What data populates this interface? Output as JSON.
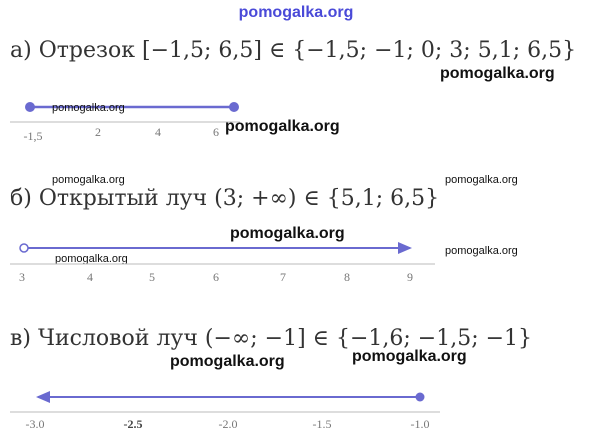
{
  "watermarks": [
    "pomogalka.org",
    "pomogalka.org",
    "pomogalka.org",
    "pomogalka.org",
    "pomogalka.org",
    "pomogalka.org",
    "pomogalka.org",
    "pomogalka.org",
    "pomogalka.org",
    "pomogalka.org",
    "pomogalka.org"
  ],
  "sections": [
    {
      "heading": "а) Отрезок [−1,5; 6,5]  ∈ {−1,5;  −1; 0; 3; 5,1; 6,5}",
      "ticks": [
        "-1,5",
        "2",
        "4",
        "6"
      ]
    },
    {
      "heading": "б) Открытый луч (3;  +∞) ∈ {5,1; 6,5}",
      "ticks": [
        "3",
        "4",
        "5",
        "6",
        "7",
        "8",
        "9"
      ]
    },
    {
      "heading": "в) Числовой луч (−∞;  −1] ∈ {−1,6;  −1,5;  −1}",
      "ticks": [
        "-3.0",
        "-2.5",
        "-2.0",
        "-1.5",
        "-1.0"
      ]
    }
  ]
}
